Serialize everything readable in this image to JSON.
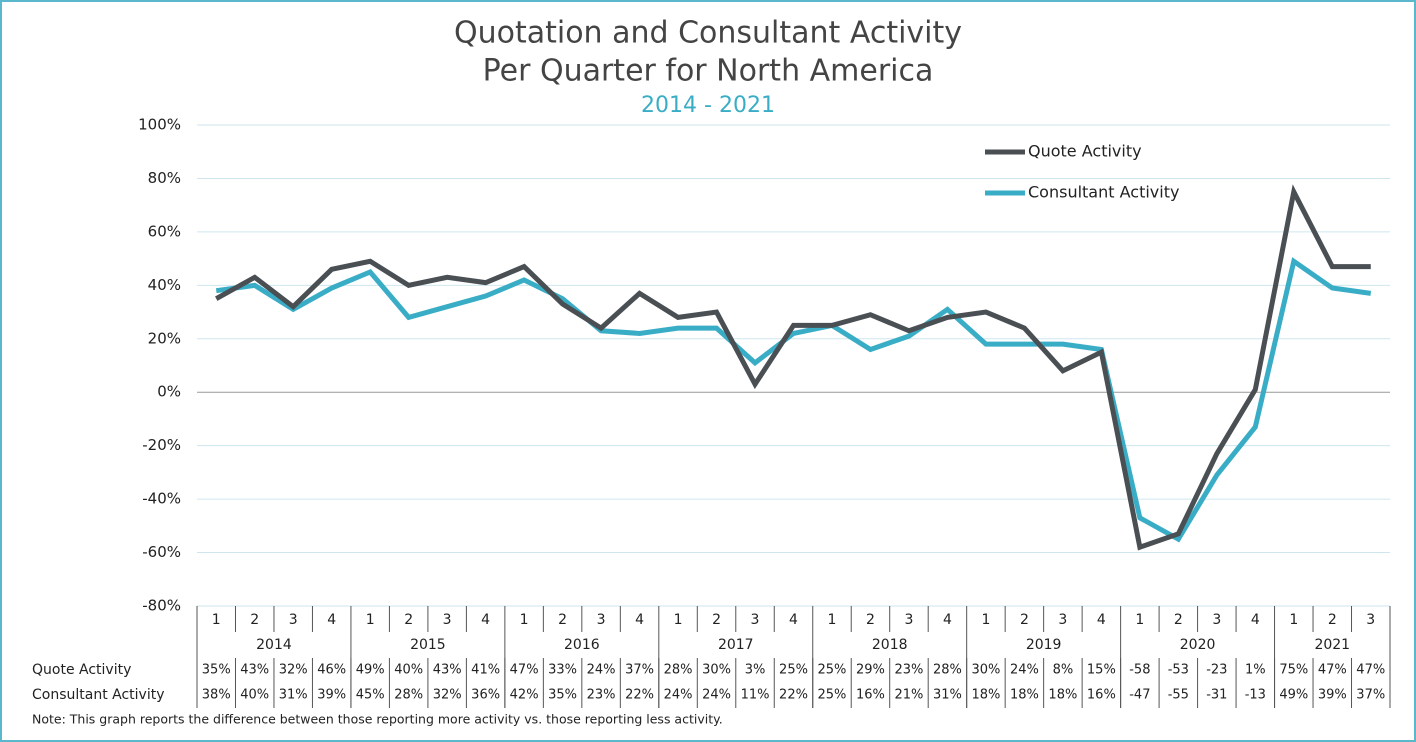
{
  "chart_data": {
    "type": "line",
    "title": [
      "Quotation and Consultant Activity",
      "Per Quarter for North America"
    ],
    "subtitle": "2014 - 2021",
    "category_groups": [
      {
        "name": "2014",
        "categories": [
          "1",
          "2",
          "3",
          "4"
        ]
      },
      {
        "name": "2015",
        "categories": [
          "1",
          "2",
          "3",
          "4"
        ]
      },
      {
        "name": "2016",
        "categories": [
          "1",
          "2",
          "3",
          "4"
        ]
      },
      {
        "name": "2017",
        "categories": [
          "1",
          "2",
          "3",
          "4"
        ]
      },
      {
        "name": "2018",
        "categories": [
          "1",
          "2",
          "3",
          "4"
        ]
      },
      {
        "name": "2019",
        "categories": [
          "1",
          "2",
          "3",
          "4"
        ]
      },
      {
        "name": "2020",
        "categories": [
          "1",
          "2",
          "3",
          "4"
        ]
      },
      {
        "name": "2021",
        "categories": [
          "1",
          "2",
          "3"
        ]
      }
    ],
    "series": [
      {
        "name": "Quote Activity",
        "color": "#4a4f54",
        "values": [
          35,
          43,
          32,
          46,
          49,
          40,
          43,
          41,
          47,
          33,
          24,
          37,
          28,
          30,
          3,
          25,
          25,
          29,
          23,
          28,
          30,
          24,
          8,
          15,
          -58,
          -53,
          -23,
          1,
          75,
          47,
          47
        ],
        "value_labels": [
          "35%",
          "43%",
          "32%",
          "46%",
          "49%",
          "40%",
          "43%",
          "41%",
          "47%",
          "33%",
          "24%",
          "37%",
          "28%",
          "30%",
          "3%",
          "25%",
          "25%",
          "29%",
          "23%",
          "28%",
          "30%",
          "24%",
          "8%",
          "15%",
          "-58",
          "-53",
          "-23",
          "1%",
          "75%",
          "47%",
          "47%"
        ]
      },
      {
        "name": "Consultant Activity",
        "color": "#3aadc6",
        "values": [
          38,
          40,
          31,
          39,
          45,
          28,
          32,
          36,
          42,
          35,
          23,
          22,
          24,
          24,
          11,
          22,
          25,
          16,
          21,
          31,
          18,
          18,
          18,
          16,
          -47,
          -55,
          -31,
          -13,
          49,
          39,
          37
        ],
        "value_labels": [
          "38%",
          "40%",
          "31%",
          "39%",
          "45%",
          "28%",
          "32%",
          "36%",
          "42%",
          "35%",
          "23%",
          "22%",
          "24%",
          "24%",
          "11%",
          "22%",
          "25%",
          "16%",
          "21%",
          "31%",
          "18%",
          "18%",
          "18%",
          "16%",
          "-47",
          "-55",
          "-31",
          "-13",
          "49%",
          "39%",
          "37%"
        ]
      }
    ],
    "ylim": [
      -80,
      100
    ],
    "yticks": [
      {
        "value": -80,
        "label": "-80%"
      },
      {
        "value": -60,
        "label": "-60%"
      },
      {
        "value": -40,
        "label": "-40%"
      },
      {
        "value": -20,
        "label": "-20%"
      },
      {
        "value": 0,
        "label": "0%"
      },
      {
        "value": 20,
        "label": "20%"
      },
      {
        "value": 40,
        "label": "40%"
      },
      {
        "value": 60,
        "label": "60%"
      },
      {
        "value": 80,
        "label": "80%"
      },
      {
        "value": 100,
        "label": "100%"
      }
    ],
    "grid": true,
    "legend": "upper right",
    "note": "Note: This graph reports the difference between those reporting more activity vs. those reporting less activity."
  }
}
